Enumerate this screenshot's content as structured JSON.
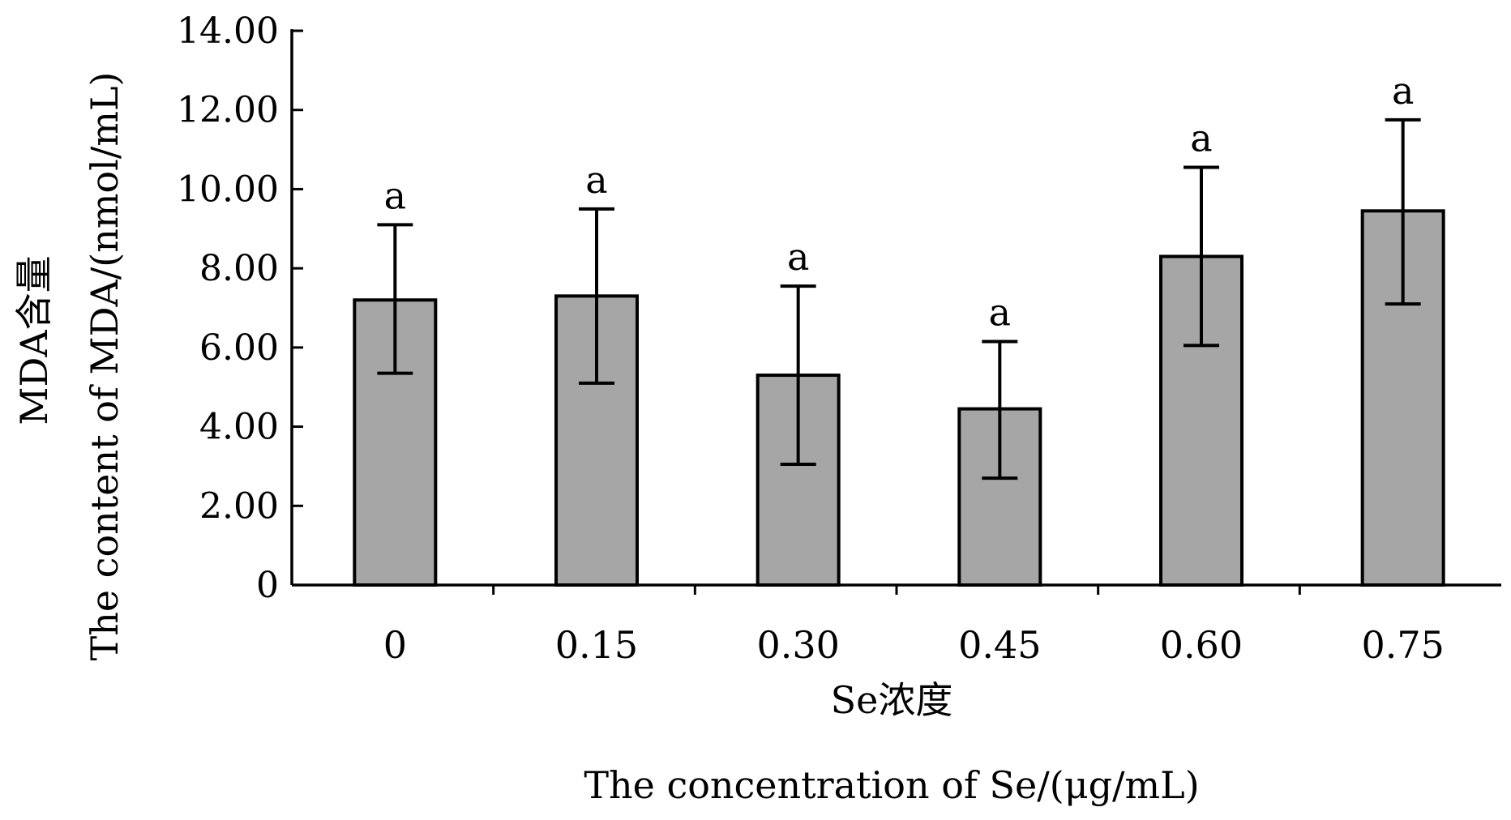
{
  "chart_data": {
    "type": "bar",
    "categories": [
      "0",
      "0.15",
      "0.30",
      "0.45",
      "0.60",
      "0.75"
    ],
    "values": [
      7.2,
      7.3,
      5.3,
      4.45,
      8.3,
      9.45
    ],
    "error_low": [
      5.35,
      5.1,
      3.05,
      2.7,
      6.05,
      7.1
    ],
    "error_high": [
      9.1,
      9.5,
      7.55,
      6.15,
      10.55,
      11.75
    ],
    "significance": [
      "a",
      "a",
      "a",
      "a",
      "a",
      "a"
    ],
    "ylim": [
      0,
      14
    ],
    "yticks": [
      0,
      2,
      4,
      6,
      8,
      10,
      12,
      14
    ],
    "ytick_labels": [
      "0",
      "2.00",
      "4.00",
      "6.00",
      "8.00",
      "10.00",
      "12.00",
      "14.00"
    ],
    "xlabel_cn": "Se浓度",
    "xlabel_en": "The concentration of Se/(μg/mL)",
    "ylabel_cn": "MDA含量",
    "ylabel_en": "The content of MDA/(nmol/mL)",
    "bar_color": "#a6a6a6",
    "grid": false
  }
}
